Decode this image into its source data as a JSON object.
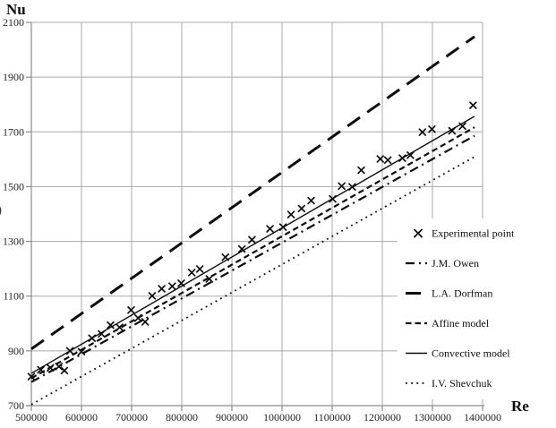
{
  "figure": {
    "y_axis_title": "Nu",
    "x_axis_title": "Re",
    "left_margin_artifact": ")"
  },
  "chart_data": {
    "type": "line+scatter",
    "title": "",
    "xlabel": "Re",
    "ylabel": "Nu",
    "xlim": [
      500000,
      1400000
    ],
    "ylim": [
      700,
      2100
    ],
    "xticks": [
      500000,
      600000,
      700000,
      800000,
      900000,
      1000000,
      1100000,
      1200000,
      1300000,
      1400000
    ],
    "yticks": [
      700,
      900,
      1100,
      1300,
      1500,
      1700,
      1900,
      2100
    ],
    "grid": true,
    "legend_position": "inside bottom-right",
    "background_color": "#ffffff",
    "grid_color": "#a8a8a8",
    "axis_color": "#8c8c8c",
    "ink_color": "#0d0d0d",
    "tick_label_color": "#262626",
    "scatter_series": {
      "name": "Experimental point",
      "marker": "x",
      "points": [
        [
          500000,
          806
        ],
        [
          519000,
          831
        ],
        [
          538000,
          838
        ],
        [
          555000,
          843
        ],
        [
          566000,
          828
        ],
        [
          577000,
          900
        ],
        [
          600000,
          897
        ],
        [
          621000,
          946
        ],
        [
          640000,
          962
        ],
        [
          658000,
          994
        ],
        [
          676000,
          986
        ],
        [
          699000,
          1049
        ],
        [
          713000,
          1020
        ],
        [
          727000,
          1006
        ],
        [
          741000,
          1101
        ],
        [
          760000,
          1127
        ],
        [
          781000,
          1136
        ],
        [
          799000,
          1147
        ],
        [
          820000,
          1186
        ],
        [
          836000,
          1199
        ],
        [
          855000,
          1163
        ],
        [
          887000,
          1242
        ],
        [
          920000,
          1272
        ],
        [
          940000,
          1306
        ],
        [
          976000,
          1346
        ],
        [
          1002000,
          1352
        ],
        [
          1018000,
          1398
        ],
        [
          1039000,
          1420
        ],
        [
          1058000,
          1449
        ],
        [
          1101000,
          1455
        ],
        [
          1119000,
          1502
        ],
        [
          1140000,
          1499
        ],
        [
          1158000,
          1560
        ],
        [
          1196000,
          1601
        ],
        [
          1211000,
          1597
        ],
        [
          1240000,
          1604
        ],
        [
          1256000,
          1615
        ],
        [
          1280000,
          1699
        ],
        [
          1299000,
          1710
        ],
        [
          1339000,
          1704
        ],
        [
          1360000,
          1721
        ],
        [
          1381000,
          1797
        ]
      ]
    },
    "line_series": [
      {
        "name": "I.V. Shevchuk",
        "style": "dotted",
        "points": [
          [
            500000,
            704
          ],
          [
            1384000,
            1609
          ]
        ]
      },
      {
        "name": "J.M. Owen",
        "style": "dash-dot",
        "points": [
          [
            500000,
            786
          ],
          [
            1384000,
            1686
          ]
        ]
      },
      {
        "name": "Affine model",
        "style": "dashed",
        "points": [
          [
            500000,
            800
          ],
          [
            1384000,
            1717
          ]
        ]
      },
      {
        "name": "Convective model",
        "style": "solid",
        "points": [
          [
            500000,
            818
          ],
          [
            1384000,
            1757
          ]
        ]
      },
      {
        "name": "L.A. Dorfman",
        "style": "long-dash",
        "points": [
          [
            500000,
            907
          ],
          [
            1384000,
            2048
          ]
        ]
      }
    ],
    "legend": [
      {
        "label": "Experimental point",
        "sample": "x-marker"
      },
      {
        "label": "J.M. Owen",
        "sample": "dash-dot"
      },
      {
        "label": "L.A. Dorfman",
        "sample": "long-dash"
      },
      {
        "label": "Affine model",
        "sample": "dashed"
      },
      {
        "label": "Convective model",
        "sample": "solid"
      },
      {
        "label": "I.V. Shevchuk",
        "sample": "dotted"
      }
    ]
  }
}
